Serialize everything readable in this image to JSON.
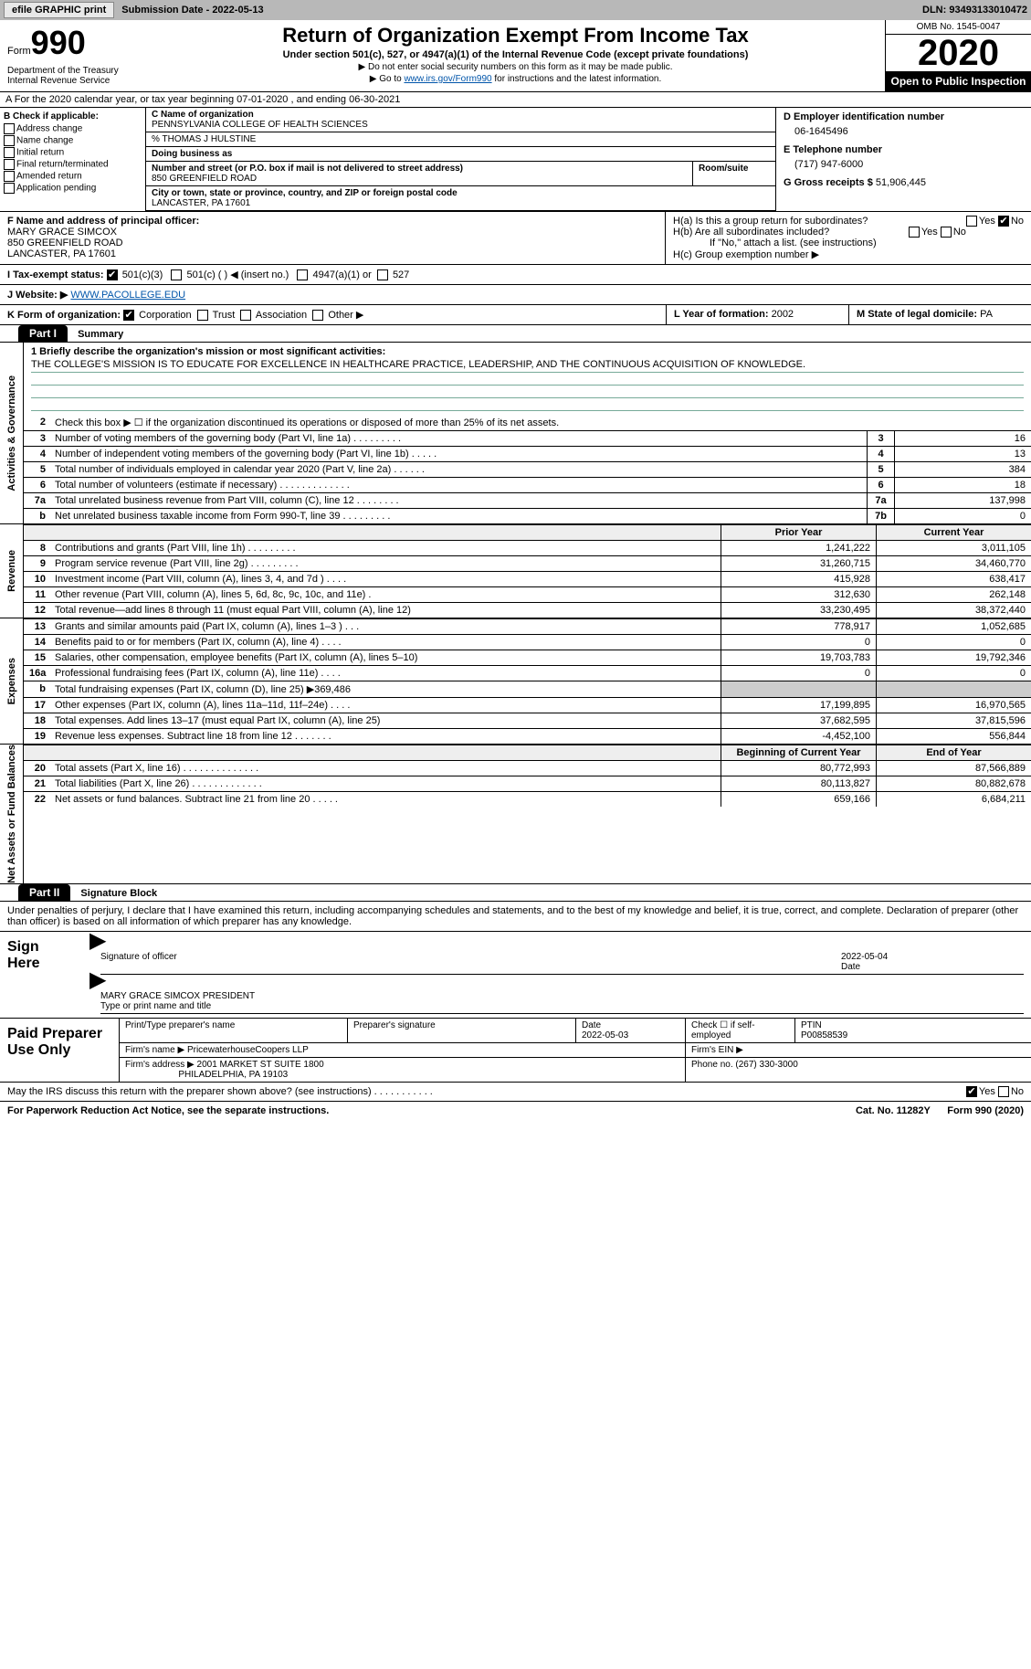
{
  "topbar": {
    "efile_btn": "efile GRAPHIC print",
    "sub_date_label": "Submission Date - 2022-05-13",
    "dln": "DLN: 93493133010472"
  },
  "header": {
    "form_label": "Form",
    "form_num": "990",
    "dept": "Department of the Treasury\nInternal Revenue Service",
    "title": "Return of Organization Exempt From Income Tax",
    "subtitle": "Under section 501(c), 527, or 4947(a)(1) of the Internal Revenue Code (except private foundations)",
    "note1": "▶ Do not enter social security numbers on this form as it may be made public.",
    "note2_pre": "▶ Go to ",
    "note2_link": "www.irs.gov/Form990",
    "note2_post": " for instructions and the latest information.",
    "omb": "OMB No. 1545-0047",
    "year": "2020",
    "open_pub": "Open to Public Inspection"
  },
  "line_a": "A For the 2020 calendar year, or tax year beginning 07-01-2020    , and ending 06-30-2021",
  "b": {
    "hd": "B Check if applicable:",
    "opts": [
      "Address change",
      "Name change",
      "Initial return",
      "Final return/terminated",
      "Amended return",
      "Application pending"
    ]
  },
  "c": {
    "name_lbl": "C Name of organization",
    "name": "PENNSYLVANIA COLLEGE OF HEALTH SCIENCES",
    "care_of": "% THOMAS J HULSTINE",
    "dba_lbl": "Doing business as",
    "addr_lbl": "Number and street (or P.O. box if mail is not delivered to street address)",
    "addr": "850 GREENFIELD ROAD",
    "suite_lbl": "Room/suite",
    "city_lbl": "City or town, state or province, country, and ZIP or foreign postal code",
    "city": "LANCASTER, PA  17601"
  },
  "d": {
    "ein_lbl": "D Employer identification number",
    "ein": "06-1645496",
    "tel_lbl": "E Telephone number",
    "tel": "(717) 947-6000",
    "gross_lbl": "G Gross receipts $",
    "gross": "51,906,445"
  },
  "f": {
    "lbl": "F Name and address of principal officer:",
    "name": "MARY GRACE SIMCOX",
    "addr1": "850 GREENFIELD ROAD",
    "addr2": "LANCASTER, PA  17601"
  },
  "h": {
    "a_lbl": "H(a)  Is this a group return for subordinates?",
    "b_lbl": "H(b)  Are all subordinates included?",
    "b_note": "If \"No,\" attach a list. (see instructions)",
    "c_lbl": "H(c)  Group exemption number ▶",
    "yes": "Yes",
    "no": "No"
  },
  "i": {
    "lbl": "I    Tax-exempt status:",
    "o1": "501(c)(3)",
    "o2": "501(c) (  ) ◀ (insert no.)",
    "o3": "4947(a)(1) or",
    "o4": "527"
  },
  "j": {
    "lbl": "J   Website: ▶",
    "url": "WWW.PACOLLEGE.EDU"
  },
  "k": {
    "lbl": "K Form of organization:",
    "opts": [
      "Corporation",
      "Trust",
      "Association",
      "Other ▶"
    ]
  },
  "l": {
    "lbl": "L Year of formation:",
    "val": "2002"
  },
  "m": {
    "lbl": "M State of legal domicile:",
    "val": "PA"
  },
  "part1": {
    "hd": "Part I",
    "title": "Summary"
  },
  "mission": {
    "lbl": "1   Briefly describe the organization's mission or most significant activities:",
    "txt": "THE COLLEGE'S MISSION IS TO EDUCATE FOR EXCELLENCE IN HEALTHCARE PRACTICE, LEADERSHIP, AND THE CONTINUOUS ACQUISITION OF KNOWLEDGE."
  },
  "gov": {
    "tab": "Activities & Governance",
    "line2": "Check this box ▶ ☐  if the organization discontinued its operations or disposed of more than 25% of its net assets.",
    "rows": [
      {
        "n": "3",
        "desc": "Number of voting members of the governing body (Part VI, line 1a)  .    .    .    .    .    .    .    .    .",
        "box": "3",
        "v": "16"
      },
      {
        "n": "4",
        "desc": "Number of independent voting members of the governing body (Part VI, line 1b)  .    .    .    .    .",
        "box": "4",
        "v": "13"
      },
      {
        "n": "5",
        "desc": "Total number of individuals employed in calendar year 2020 (Part V, line 2a)  .    .    .    .    .    .",
        "box": "5",
        "v": "384"
      },
      {
        "n": "6",
        "desc": "Total number of volunteers (estimate if necessary)  .    .    .    .    .    .    .    .    .    .    .    .    .",
        "box": "6",
        "v": "18"
      },
      {
        "n": "7a",
        "desc": "Total unrelated business revenue from Part VIII, column (C), line 12  .    .    .    .    .    .    .    .",
        "box": "7a",
        "v": "137,998"
      },
      {
        "n": "b",
        "desc": "Net unrelated business taxable income from Form 990-T, line 39  .    .    .    .    .    .    .    .    .",
        "box": "7b",
        "v": "0"
      }
    ]
  },
  "rev": {
    "tab": "Revenue",
    "hd1": "Prior Year",
    "hd2": "Current Year",
    "rows": [
      {
        "n": "8",
        "desc": "Contributions and grants (Part VIII, line 1h)  .    .    .    .    .    .    .    .    .",
        "c1": "1,241,222",
        "c2": "3,011,105"
      },
      {
        "n": "9",
        "desc": "Program service revenue (Part VIII, line 2g)  .    .    .    .    .    .    .    .    .",
        "c1": "31,260,715",
        "c2": "34,460,770"
      },
      {
        "n": "10",
        "desc": "Investment income (Part VIII, column (A), lines 3, 4, and 7d )  .    .    .    .",
        "c1": "415,928",
        "c2": "638,417"
      },
      {
        "n": "11",
        "desc": "Other revenue (Part VIII, column (A), lines 5, 6d, 8c, 9c, 10c, and 11e)  .",
        "c1": "312,630",
        "c2": "262,148"
      },
      {
        "n": "12",
        "desc": "Total revenue—add lines 8 through 11 (must equal Part VIII, column (A), line 12)",
        "c1": "33,230,495",
        "c2": "38,372,440"
      }
    ]
  },
  "exp": {
    "tab": "Expenses",
    "rows": [
      {
        "n": "13",
        "desc": "Grants and similar amounts paid (Part IX, column (A), lines 1–3 )  .    .    .",
        "c1": "778,917",
        "c2": "1,052,685"
      },
      {
        "n": "14",
        "desc": "Benefits paid to or for members (Part IX, column (A), line 4)  .    .    .    .",
        "c1": "0",
        "c2": "0"
      },
      {
        "n": "15",
        "desc": "Salaries, other compensation, employee benefits (Part IX, column (A), lines 5–10)",
        "c1": "19,703,783",
        "c2": "19,792,346"
      },
      {
        "n": "16a",
        "desc": "Professional fundraising fees (Part IX, column (A), line 11e)  .    .    .    .",
        "c1": "0",
        "c2": "0"
      },
      {
        "n": "b",
        "desc": "Total fundraising expenses (Part IX, column (D), line 25) ▶369,486",
        "c1": "",
        "c2": "",
        "shade": true
      },
      {
        "n": "17",
        "desc": "Other expenses (Part IX, column (A), lines 11a–11d, 11f–24e)  .    .    .    .",
        "c1": "17,199,895",
        "c2": "16,970,565"
      },
      {
        "n": "18",
        "desc": "Total expenses. Add lines 13–17 (must equal Part IX, column (A), line 25)",
        "c1": "37,682,595",
        "c2": "37,815,596"
      },
      {
        "n": "19",
        "desc": "Revenue less expenses. Subtract line 18 from line 12  .    .    .    .    .    .    .",
        "c1": "-4,452,100",
        "c2": "556,844"
      }
    ]
  },
  "net": {
    "tab": "Net Assets or Fund Balances",
    "hd1": "Beginning of Current Year",
    "hd2": "End of Year",
    "rows": [
      {
        "n": "20",
        "desc": "Total assets (Part X, line 16)  .    .    .    .    .    .    .    .    .    .    .    .    .    .",
        "c1": "80,772,993",
        "c2": "87,566,889"
      },
      {
        "n": "21",
        "desc": "Total liabilities (Part X, line 26)  .    .    .    .    .    .    .    .    .    .    .    .    .",
        "c1": "80,113,827",
        "c2": "80,882,678"
      },
      {
        "n": "22",
        "desc": "Net assets or fund balances. Subtract line 21 from line 20  .    .    .    .    .",
        "c1": "659,166",
        "c2": "6,684,211"
      }
    ]
  },
  "part2": {
    "hd": "Part II",
    "title": "Signature Block"
  },
  "sig_decl": "Under penalties of perjury, I declare that I have examined this return, including accompanying schedules and statements, and to the best of my knowledge and belief, it is true, correct, and complete. Declaration of preparer (other than officer) is based on all information of which preparer has any knowledge.",
  "sign": {
    "lbl": "Sign Here",
    "sig_lbl": "Signature of officer",
    "date": "2022-05-04",
    "date_lbl": "Date",
    "name": "MARY GRACE SIMCOX  PRESIDENT",
    "name_lbl": "Type or print name and title"
  },
  "prep": {
    "lbl": "Paid Preparer Use Only",
    "h1": "Print/Type preparer's name",
    "h2": "Preparer's signature",
    "h3": "Date",
    "h3v": "2022-05-03",
    "h4": "Check ☐ if self-employed",
    "h5": "PTIN",
    "h5v": "P00858539",
    "firm_lbl": "Firm's name    ▶",
    "firm": "PricewaterhouseCoopers LLP",
    "ein_lbl": "Firm's EIN ▶",
    "addr_lbl": "Firm's address ▶",
    "addr1": "2001 MARKET ST SUITE 1800",
    "addr2": "PHILADELPHIA, PA  19103",
    "phone_lbl": "Phone no.",
    "phone": "(267) 330-3000"
  },
  "discuss": "May the IRS discuss this return with the preparer shown above? (see instructions)  .    .    .    .    .    .    .    .    .    .    .",
  "footer": {
    "l": "For Paperwork Reduction Act Notice, see the separate instructions.",
    "c": "Cat. No. 11282Y",
    "r": "Form 990 (2020)"
  }
}
